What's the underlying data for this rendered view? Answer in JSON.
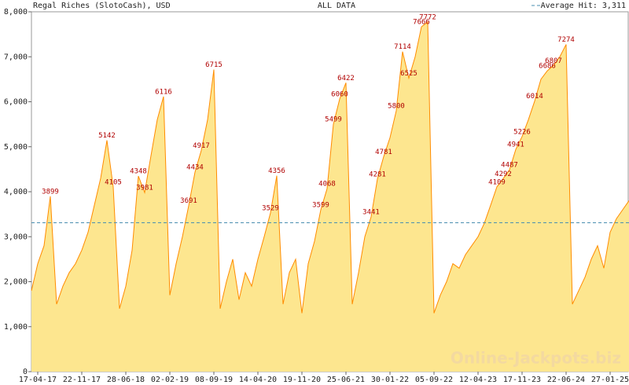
{
  "chart_data": {
    "type": "area",
    "title": "Regal Riches (SlotoCash), USD",
    "subtitle": "ALL DATA",
    "watermark": "Online-Jackpots.biz",
    "average": 3311,
    "average_label": "Average Hit: 3,311",
    "color": "#ff8c00",
    "fill": "#fde68f",
    "average_color": "#4a8fb0",
    "label_color": "#b00000",
    "values": [
      1800,
      2400,
      2800,
      3899,
      1500,
      1900,
      2200,
      2400,
      2700,
      3100,
      3700,
      4300,
      5142,
      4105,
      1400,
      1900,
      2700,
      4348,
      3981,
      4800,
      5600,
      6116,
      1700,
      2400,
      3000,
      3691,
      4434,
      4917,
      5600,
      6715,
      1400,
      2000,
      2500,
      1600,
      2200,
      1900,
      2500,
      3000,
      3529,
      4356,
      1500,
      2200,
      2500,
      1300,
      2400,
      2900,
      3599,
      4068,
      5499,
      6060,
      6422,
      1500,
      2200,
      3000,
      3441,
      4281,
      4781,
      5200,
      5800,
      7114,
      6525,
      7000,
      7666,
      7772,
      1300,
      1700,
      2000,
      2400,
      2300,
      2600,
      2800,
      3000,
      3300,
      3700,
      4109,
      4292,
      4487,
      4941,
      5226,
      5600,
      6014,
      6500,
      6686,
      6807,
      7000,
      7274,
      1500,
      1800,
      2100,
      2500,
      2800,
      2300,
      3100,
      3400,
      3600,
      3800
    ],
    "annotations": [
      {
        "x": 3,
        "y": 3899
      },
      {
        "x": 12,
        "y": 5142
      },
      {
        "x": 13,
        "y": 4105
      },
      {
        "x": 17,
        "y": 4348
      },
      {
        "x": 18,
        "y": 3981
      },
      {
        "x": 21,
        "y": 6116
      },
      {
        "x": 25,
        "y": 3691
      },
      {
        "x": 26,
        "y": 4434
      },
      {
        "x": 27,
        "y": 4917
      },
      {
        "x": 29,
        "y": 6715
      },
      {
        "x": 38,
        "y": 3529
      },
      {
        "x": 39,
        "y": 4356
      },
      {
        "x": 46,
        "y": 3599
      },
      {
        "x": 47,
        "y": 4068
      },
      {
        "x": 48,
        "y": 5499
      },
      {
        "x": 49,
        "y": 6060
      },
      {
        "x": 50,
        "y": 6422
      },
      {
        "x": 54,
        "y": 3441
      },
      {
        "x": 55,
        "y": 4281
      },
      {
        "x": 56,
        "y": 4781
      },
      {
        "x": 58,
        "y": 5800
      },
      {
        "x": 59,
        "y": 7114
      },
      {
        "x": 60,
        "y": 6525
      },
      {
        "x": 62,
        "y": 7666
      },
      {
        "x": 63,
        "y": 7772
      },
      {
        "x": 74,
        "y": 4109
      },
      {
        "x": 75,
        "y": 4292
      },
      {
        "x": 76,
        "y": 4487
      },
      {
        "x": 77,
        "y": 4941
      },
      {
        "x": 78,
        "y": 5226
      },
      {
        "x": 80,
        "y": 6014
      },
      {
        "x": 82,
        "y": 6686
      },
      {
        "x": 83,
        "y": 6807
      },
      {
        "x": 85,
        "y": 7274
      }
    ],
    "xlim": [
      0,
      95
    ],
    "xticks": [
      {
        "value": 1,
        "label": "17-04-17"
      },
      {
        "value": 8,
        "label": "22-11-17"
      },
      {
        "value": 15,
        "label": "28-06-18"
      },
      {
        "value": 22,
        "label": "02-02-19"
      },
      {
        "value": 29,
        "label": "08-09-19"
      },
      {
        "value": 36,
        "label": "14-04-20"
      },
      {
        "value": 43,
        "label": "19-11-20"
      },
      {
        "value": 50,
        "label": "25-06-21"
      },
      {
        "value": 57,
        "label": "30-01-22"
      },
      {
        "value": 64,
        "label": "05-09-22"
      },
      {
        "value": 71,
        "label": "12-04-23"
      },
      {
        "value": 78,
        "label": "17-11-23"
      },
      {
        "value": 85,
        "label": "22-06-24"
      },
      {
        "value": 92,
        "label": "27-01-25"
      }
    ],
    "ylim": [
      0,
      8000
    ],
    "yticks": [
      0,
      {
        "value": 1000,
        "label": "1,000"
      },
      {
        "value": 2000,
        "label": "2,000"
      },
      {
        "value": 3000,
        "label": "3,000"
      },
      {
        "value": 4000,
        "label": "4,000"
      },
      {
        "value": 5000,
        "label": "5,000"
      },
      {
        "value": 6000,
        "label": "6,000"
      },
      {
        "value": 7000,
        "label": "7,000"
      },
      {
        "value": 8000,
        "label": "8,000"
      }
    ],
    "grid": false
  }
}
